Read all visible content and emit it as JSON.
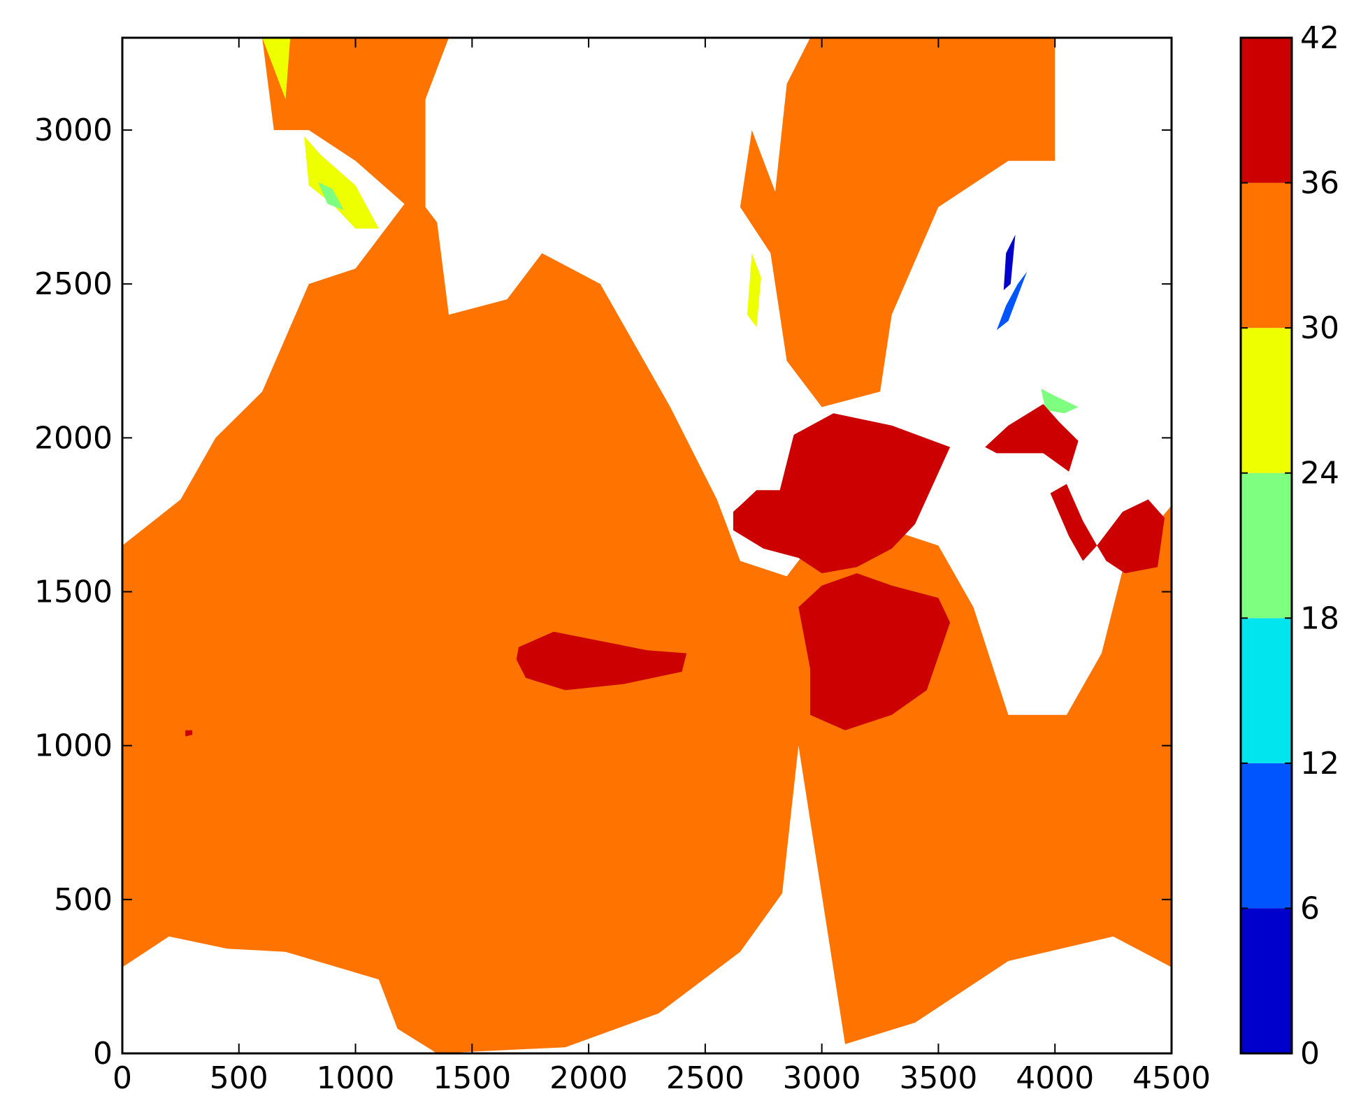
{
  "chart_data": {
    "type": "heatmap",
    "title": "",
    "xlabel": "",
    "ylabel": "",
    "xlim": [
      0,
      4500
    ],
    "ylim": [
      0,
      3300
    ],
    "x_ticks": [
      0,
      500,
      1000,
      1500,
      2000,
      2500,
      3000,
      3500,
      4000,
      4500
    ],
    "y_ticks": [
      0,
      500,
      1000,
      1500,
      2000,
      2500,
      3000
    ],
    "grid": false,
    "colormap": "jet",
    "colorbar": {
      "orientation": "vertical",
      "placement": "right",
      "ticks": [
        0,
        6,
        12,
        18,
        24,
        30,
        36,
        42
      ],
      "levels": [
        {
          "from": 0,
          "to": 6,
          "color": "#0000cd"
        },
        {
          "from": 6,
          "to": 12,
          "color": "#0055ff"
        },
        {
          "from": 12,
          "to": 18,
          "color": "#00e5ee"
        },
        {
          "from": 18,
          "to": 24,
          "color": "#7fff7f"
        },
        {
          "from": 24,
          "to": 30,
          "color": "#eeff00"
        },
        {
          "from": 30,
          "to": 36,
          "color": "#ff7300"
        },
        {
          "from": 36,
          "to": 42,
          "color": "#cc0000"
        }
      ]
    },
    "land_color": "#ffffff",
    "regions": [
      {
        "level": "30-36",
        "color": "#ff7300",
        "points": [
          [
            0,
            1650
          ],
          [
            0,
            280
          ],
          [
            200,
            380
          ],
          [
            450,
            340
          ],
          [
            700,
            330
          ],
          [
            1100,
            240
          ],
          [
            1180,
            80
          ],
          [
            1350,
            0
          ],
          [
            1900,
            20
          ],
          [
            2300,
            130
          ],
          [
            2650,
            330
          ],
          [
            2830,
            520
          ],
          [
            2900,
            1000
          ],
          [
            3100,
            30
          ],
          [
            3400,
            100
          ],
          [
            3800,
            300
          ],
          [
            4250,
            380
          ],
          [
            4500,
            280
          ],
          [
            4500,
            1780
          ],
          [
            4300,
            1600
          ],
          [
            4200,
            1300
          ],
          [
            4050,
            1100
          ],
          [
            3800,
            1100
          ],
          [
            3650,
            1450
          ],
          [
            3500,
            1650
          ],
          [
            3300,
            1700
          ],
          [
            3150,
            1600
          ],
          [
            3000,
            1700
          ],
          [
            2850,
            1550
          ],
          [
            2650,
            1600
          ],
          [
            2550,
            1800
          ],
          [
            2350,
            2100
          ],
          [
            2050,
            2500
          ],
          [
            1800,
            2600
          ],
          [
            1650,
            2450
          ],
          [
            1400,
            2400
          ],
          [
            1350,
            2700
          ],
          [
            1250,
            2800
          ],
          [
            1100,
            2650
          ],
          [
            1000,
            2550
          ],
          [
            800,
            2500
          ],
          [
            600,
            2150
          ],
          [
            400,
            2000
          ],
          [
            250,
            1800
          ]
        ]
      },
      {
        "level": "30-36",
        "color": "#ff7300",
        "points": [
          [
            600,
            3300
          ],
          [
            650,
            3000
          ],
          [
            800,
            3000
          ],
          [
            1000,
            2900
          ],
          [
            1300,
            2700
          ],
          [
            1300,
            3100
          ],
          [
            1400,
            3300
          ]
        ]
      },
      {
        "level": "30-36",
        "color": "#ff7300",
        "points": [
          [
            2650,
            2750
          ],
          [
            2700,
            3000
          ],
          [
            2800,
            2800
          ],
          [
            2850,
            3150
          ],
          [
            2950,
            3300
          ],
          [
            4000,
            3300
          ],
          [
            4000,
            2900
          ],
          [
            3800,
            2900
          ],
          [
            3500,
            2750
          ],
          [
            3300,
            2400
          ],
          [
            3250,
            2150
          ],
          [
            3000,
            2100
          ],
          [
            2850,
            2250
          ],
          [
            2780,
            2600
          ]
        ]
      },
      {
        "level": "30-36",
        "color": "#ff7300",
        "points": [
          [
            2800,
            1500
          ],
          [
            2900,
            1600
          ],
          [
            3050,
            1550
          ],
          [
            3300,
            1700
          ],
          [
            3450,
            1620
          ],
          [
            3400,
            1550
          ],
          [
            3100,
            1450
          ],
          [
            2950,
            1450
          ]
        ]
      },
      {
        "level": "24-30",
        "color": "#eeff00",
        "points": [
          [
            780,
            2980
          ],
          [
            850,
            2920
          ],
          [
            1000,
            2820
          ],
          [
            1100,
            2680
          ],
          [
            1000,
            2680
          ],
          [
            900,
            2760
          ],
          [
            800,
            2820
          ]
        ]
      },
      {
        "level": "24-30",
        "color": "#eeff00",
        "points": [
          [
            600,
            3300
          ],
          [
            650,
            3200
          ],
          [
            700,
            3100
          ],
          [
            720,
            3300
          ]
        ]
      },
      {
        "level": "24-30",
        "color": "#eeff00",
        "points": [
          [
            2680,
            2400
          ],
          [
            2700,
            2600
          ],
          [
            2740,
            2520
          ],
          [
            2720,
            2360
          ]
        ]
      },
      {
        "level": "18-24",
        "color": "#7fff7f",
        "points": [
          [
            840,
            2830
          ],
          [
            900,
            2810
          ],
          [
            950,
            2740
          ],
          [
            880,
            2760
          ]
        ]
      },
      {
        "level": "18-24",
        "color": "#7fff7f",
        "points": [
          [
            3940,
            2160
          ],
          [
            3990,
            2140
          ],
          [
            4100,
            2100
          ],
          [
            4040,
            2080
          ],
          [
            3960,
            2090
          ]
        ]
      },
      {
        "level": "6-12",
        "color": "#0055ff",
        "points": [
          [
            3750,
            2350
          ],
          [
            3800,
            2380
          ],
          [
            3880,
            2540
          ],
          [
            3840,
            2500
          ],
          [
            3790,
            2430
          ]
        ]
      },
      {
        "level": "0-6",
        "color": "#0000cd",
        "points": [
          [
            3780,
            2480
          ],
          [
            3810,
            2500
          ],
          [
            3830,
            2660
          ],
          [
            3790,
            2600
          ]
        ]
      },
      {
        "level": "36-42",
        "color": "#cc0000",
        "points": [
          [
            2650,
            1780
          ],
          [
            2720,
            1830
          ],
          [
            2820,
            1830
          ],
          [
            2880,
            2010
          ],
          [
            3050,
            2080
          ],
          [
            3300,
            2040
          ],
          [
            3550,
            1970
          ],
          [
            3400,
            1720
          ],
          [
            3300,
            1640
          ],
          [
            3150,
            1580
          ],
          [
            3000,
            1560
          ],
          [
            2900,
            1610
          ],
          [
            2750,
            1640
          ],
          [
            2620,
            1700
          ],
          [
            2620,
            1760
          ]
        ]
      },
      {
        "level": "36-42",
        "color": "#cc0000",
        "points": [
          [
            3700,
            1970
          ],
          [
            3800,
            2040
          ],
          [
            3950,
            2110
          ],
          [
            4020,
            2050
          ],
          [
            4100,
            1990
          ],
          [
            4060,
            1890
          ],
          [
            3950,
            1950
          ],
          [
            3750,
            1950
          ]
        ]
      },
      {
        "level": "36-42",
        "color": "#cc0000",
        "points": [
          [
            3980,
            1820
          ],
          [
            4060,
            1680
          ],
          [
            4120,
            1600
          ],
          [
            4180,
            1650
          ],
          [
            4120,
            1730
          ],
          [
            4050,
            1850
          ]
        ]
      },
      {
        "level": "36-42",
        "color": "#cc0000",
        "points": [
          [
            4180,
            1650
          ],
          [
            4290,
            1760
          ],
          [
            4400,
            1800
          ],
          [
            4470,
            1740
          ],
          [
            4440,
            1580
          ],
          [
            4300,
            1560
          ],
          [
            4220,
            1600
          ]
        ]
      },
      {
        "level": "36-42",
        "color": "#cc0000",
        "points": [
          [
            2950,
            1100
          ],
          [
            3100,
            1050
          ],
          [
            3300,
            1100
          ],
          [
            3450,
            1180
          ],
          [
            3550,
            1400
          ],
          [
            3500,
            1480
          ],
          [
            3300,
            1520
          ],
          [
            3150,
            1560
          ],
          [
            3000,
            1520
          ],
          [
            2900,
            1450
          ],
          [
            2950,
            1250
          ]
        ]
      },
      {
        "level": "36-42",
        "color": "#cc0000",
        "points": [
          [
            1700,
            1320
          ],
          [
            1850,
            1370
          ],
          [
            2050,
            1340
          ],
          [
            2250,
            1310
          ],
          [
            2420,
            1300
          ],
          [
            2400,
            1240
          ],
          [
            2150,
            1200
          ],
          [
            1900,
            1180
          ],
          [
            1730,
            1220
          ],
          [
            1690,
            1280
          ]
        ]
      },
      {
        "level": "36-42",
        "color": "#cc0000",
        "points": [
          [
            270,
            1030
          ],
          [
            300,
            1035
          ],
          [
            300,
            1050
          ],
          [
            270,
            1050
          ]
        ]
      }
    ]
  }
}
